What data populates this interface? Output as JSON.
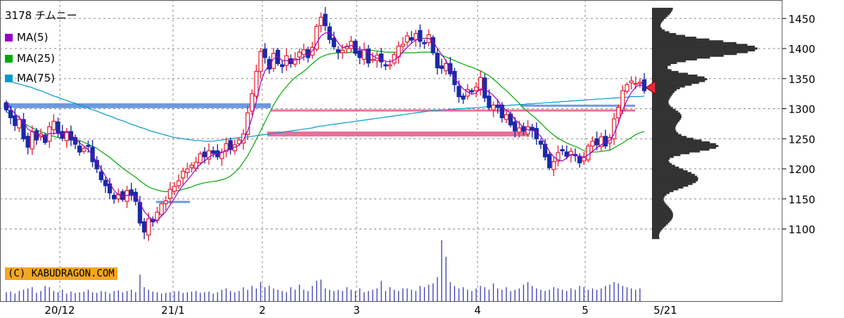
{
  "header": {
    "symbol": "3178 チムニー",
    "legend": [
      {
        "label": "MA(5)",
        "color": "#9900cc"
      },
      {
        "label": "MA(25)",
        "color": "#00aa00"
      },
      {
        "label": "MA(75)",
        "color": "#0099cc"
      }
    ],
    "copyright": "(C) KABUDRAGON.COM"
  },
  "chart_data": {
    "type": "candlestick",
    "title": "3178 チムニー",
    "ylim": [
      1080,
      1470
    ],
    "y_ticks": [
      1100,
      1150,
      1200,
      1250,
      1300,
      1350,
      1400,
      1450
    ],
    "x_labels": [
      "20/12",
      "21/1",
      "2",
      "3",
      "4",
      "5",
      "5/21"
    ],
    "colors": {
      "up": "#e8283c",
      "down": "#1a2aa8",
      "ma5": "#9900cc",
      "ma25": "#00aa00",
      "ma75": "#0099cc",
      "volume": "#3a3ab0",
      "profile": "#333333",
      "hline_blue": "#5b8fdc",
      "hline_pink": "#e86090",
      "marker": "#e8283c"
    },
    "candles_close": [
      1298,
      1285,
      1272,
      1282,
      1250,
      1236,
      1262,
      1248,
      1258,
      1244,
      1270,
      1279,
      1259,
      1251,
      1262,
      1248,
      1241,
      1228,
      1234,
      1238,
      1212,
      1200,
      1182,
      1172,
      1160,
      1150,
      1158,
      1149,
      1164,
      1156,
      1146,
      1110,
      1095,
      1117,
      1112,
      1128,
      1142,
      1147,
      1166,
      1171,
      1180,
      1196,
      1200,
      1206,
      1211,
      1225,
      1220,
      1230,
      1226,
      1220,
      1228,
      1242,
      1232,
      1240,
      1248,
      1258,
      1293,
      1325,
      1362,
      1395,
      1385,
      1366,
      1392,
      1375,
      1370,
      1388,
      1375,
      1383,
      1394,
      1398,
      1385,
      1402,
      1437,
      1452,
      1438,
      1415,
      1403,
      1394,
      1397,
      1404,
      1412,
      1392,
      1385,
      1398,
      1376,
      1382,
      1389,
      1378,
      1372,
      1373,
      1390,
      1404,
      1407,
      1421,
      1414,
      1425,
      1412,
      1408,
      1423,
      1393,
      1368,
      1367,
      1375,
      1358,
      1340,
      1320,
      1316,
      1332,
      1328,
      1336,
      1352,
      1318,
      1302,
      1306,
      1302,
      1285,
      1290,
      1273,
      1263,
      1268,
      1263,
      1270,
      1264,
      1250,
      1241,
      1220,
      1202,
      1212,
      1227,
      1230,
      1221,
      1229,
      1222,
      1210,
      1219,
      1238,
      1246,
      1240,
      1253,
      1238,
      1252,
      1283,
      1302,
      1330,
      1340,
      1346,
      1342,
      1344,
      1330
    ],
    "ma5": [
      1312,
      1300,
      1292,
      1285,
      1278,
      1266,
      1262,
      1258,
      1255,
      1253,
      1259,
      1259,
      1260,
      1258,
      1261,
      1257,
      1250,
      1243,
      1238,
      1232,
      1222,
      1212,
      1200,
      1188,
      1176,
      1164,
      1157,
      1154,
      1156,
      1156,
      1155,
      1143,
      1129,
      1121,
      1115,
      1113,
      1122,
      1129,
      1140,
      1151,
      1163,
      1173,
      1181,
      1190,
      1200,
      1208,
      1213,
      1219,
      1224,
      1225,
      1227,
      1231,
      1232,
      1236,
      1239,
      1248,
      1263,
      1285,
      1312,
      1343,
      1363,
      1372,
      1383,
      1387,
      1380,
      1380,
      1380,
      1381,
      1382,
      1386,
      1390,
      1396,
      1409,
      1421,
      1426,
      1426,
      1421,
      1409,
      1401,
      1403,
      1405,
      1402,
      1398,
      1398,
      1394,
      1388,
      1384,
      1382,
      1379,
      1378,
      1381,
      1386,
      1394,
      1402,
      1409,
      1414,
      1416,
      1417,
      1417,
      1412,
      1400,
      1390,
      1380,
      1364,
      1350,
      1341,
      1333,
      1328,
      1324,
      1326,
      1333,
      1331,
      1328,
      1322,
      1314,
      1303,
      1298,
      1292,
      1282,
      1276,
      1269,
      1265,
      1264,
      1262,
      1254,
      1242,
      1229,
      1220,
      1215,
      1213,
      1218,
      1224,
      1223,
      1220,
      1220,
      1223,
      1229,
      1235,
      1240,
      1244,
      1247,
      1258,
      1276,
      1298,
      1314,
      1327,
      1336,
      1340,
      1336
    ],
    "ma25": [
      1295,
      1290,
      1285,
      1280,
      1276,
      1272,
      1268,
      1265,
      1262,
      1259,
      1256,
      1254,
      1252,
      1251,
      1251,
      1250,
      1249,
      1247,
      1244,
      1241,
      1238,
      1234,
      1229,
      1224,
      1219,
      1213,
      1207,
      1201,
      1196,
      1191,
      1186,
      1180,
      1175,
      1170,
      1167,
      1165,
      1163,
      1162,
      1163,
      1163,
      1164,
      1166,
      1168,
      1170,
      1173,
      1175,
      1177,
      1178,
      1179,
      1180,
      1182,
      1184,
      1188,
      1194,
      1201,
      1211,
      1222,
      1235,
      1249,
      1263,
      1278,
      1292,
      1306,
      1318,
      1328,
      1337,
      1345,
      1352,
      1357,
      1362,
      1368,
      1375,
      1381,
      1386,
      1389,
      1391,
      1392,
      1393,
      1393,
      1393,
      1394,
      1394,
      1395,
      1396,
      1397,
      1397,
      1396,
      1395,
      1394,
      1394,
      1394,
      1393,
      1393,
      1393,
      1393,
      1393,
      1394,
      1394,
      1394,
      1394,
      1392,
      1389,
      1386,
      1383,
      1380,
      1377,
      1374,
      1371,
      1369,
      1366,
      1363,
      1359,
      1355,
      1349,
      1343,
      1336,
      1330,
      1323,
      1316,
      1309,
      1301,
      1295,
      1289,
      1283,
      1276,
      1269,
      1262,
      1256,
      1251,
      1247,
      1243,
      1240,
      1237,
      1234,
      1230,
      1228,
      1228,
      1228,
      1229,
      1230,
      1231,
      1235,
      1239,
      1243,
      1248,
      1252,
      1257,
      1260,
      1262
    ],
    "ma75": [
      1347,
      1345,
      1343,
      1341,
      1339,
      1337,
      1335,
      1332,
      1330,
      1327,
      1324,
      1321,
      1319,
      1316,
      1314,
      1311,
      1309,
      1306,
      1304,
      1301,
      1298,
      1296,
      1293,
      1290,
      1288,
      1285,
      1282,
      1280,
      1277,
      1274,
      1272,
      1269,
      1267,
      1264,
      1262,
      1260,
      1258,
      1256,
      1254,
      1252,
      1251,
      1250,
      1249,
      1248,
      1247,
      1247,
      1246,
      1246,
      1246,
      1247,
      1248,
      1249,
      1250,
      1251,
      1252,
      1253,
      1253,
      1254,
      1255,
      1256,
      1257,
      1258,
      1259,
      1260,
      1261,
      1262,
      1263,
      1264,
      1265,
      1266,
      1267,
      1268,
      1270,
      1271,
      1272,
      1273,
      1274,
      1275,
      1276,
      1277,
      1278,
      1279,
      1280,
      1281,
      1282,
      1283,
      1284,
      1285,
      1286,
      1287,
      1288,
      1289,
      1290,
      1291,
      1292,
      1293,
      1294,
      1295,
      1296,
      1297,
      1297,
      1298,
      1298,
      1299,
      1299,
      1300,
      1300,
      1301,
      1301,
      1302,
      1302,
      1303,
      1303,
      1304,
      1304,
      1305,
      1305,
      1306,
      1306,
      1307,
      1307,
      1308,
      1308,
      1309,
      1309,
      1310,
      1310,
      1311,
      1311,
      1312,
      1312,
      1313,
      1313,
      1314,
      1314,
      1315,
      1315,
      1316,
      1316,
      1317,
      1317,
      1318,
      1318,
      1319,
      1319,
      1320,
      1320,
      1320,
      1321
    ],
    "volume": [
      14,
      15,
      12,
      16,
      18,
      20,
      22,
      13,
      16,
      24,
      22,
      16,
      14,
      18,
      12,
      15,
      13,
      14,
      15,
      18,
      14,
      13,
      16,
      15,
      12,
      16,
      17,
      14,
      16,
      18,
      14,
      42,
      22,
      18,
      15,
      14,
      12,
      13,
      14,
      15,
      16,
      13,
      14,
      15,
      16,
      13,
      14,
      15,
      12,
      14,
      18,
      20,
      16,
      14,
      16,
      22,
      18,
      24,
      20,
      30,
      22,
      24,
      20,
      18,
      16,
      14,
      22,
      18,
      26,
      18,
      16,
      24,
      32,
      34,
      20,
      18,
      16,
      18,
      16,
      22,
      18,
      16,
      20,
      14,
      16,
      18,
      20,
      32,
      16,
      22,
      18,
      16,
      20,
      20,
      18,
      16,
      24,
      22,
      26,
      28,
      38,
      96,
      70,
      30,
      24,
      20,
      22,
      18,
      16,
      20,
      24,
      22,
      18,
      28,
      20,
      18,
      22,
      16,
      18,
      20,
      26,
      30,
      24,
      20,
      18,
      16,
      18,
      22,
      20,
      18,
      16,
      20,
      18,
      24,
      22,
      18,
      20,
      18,
      20,
      24,
      26,
      30,
      28,
      24,
      22,
      20,
      18,
      20
    ],
    "annotation_lines": [
      {
        "color": "#5b8fdc",
        "price": 1305
      },
      {
        "color": "#e86090",
        "price": 1297
      },
      {
        "color": "#e86090",
        "price": 1258
      },
      {
        "color": "#5b8fdc",
        "price": 1305
      },
      {
        "color": "#5b8fdc",
        "price": 1145
      }
    ]
  }
}
